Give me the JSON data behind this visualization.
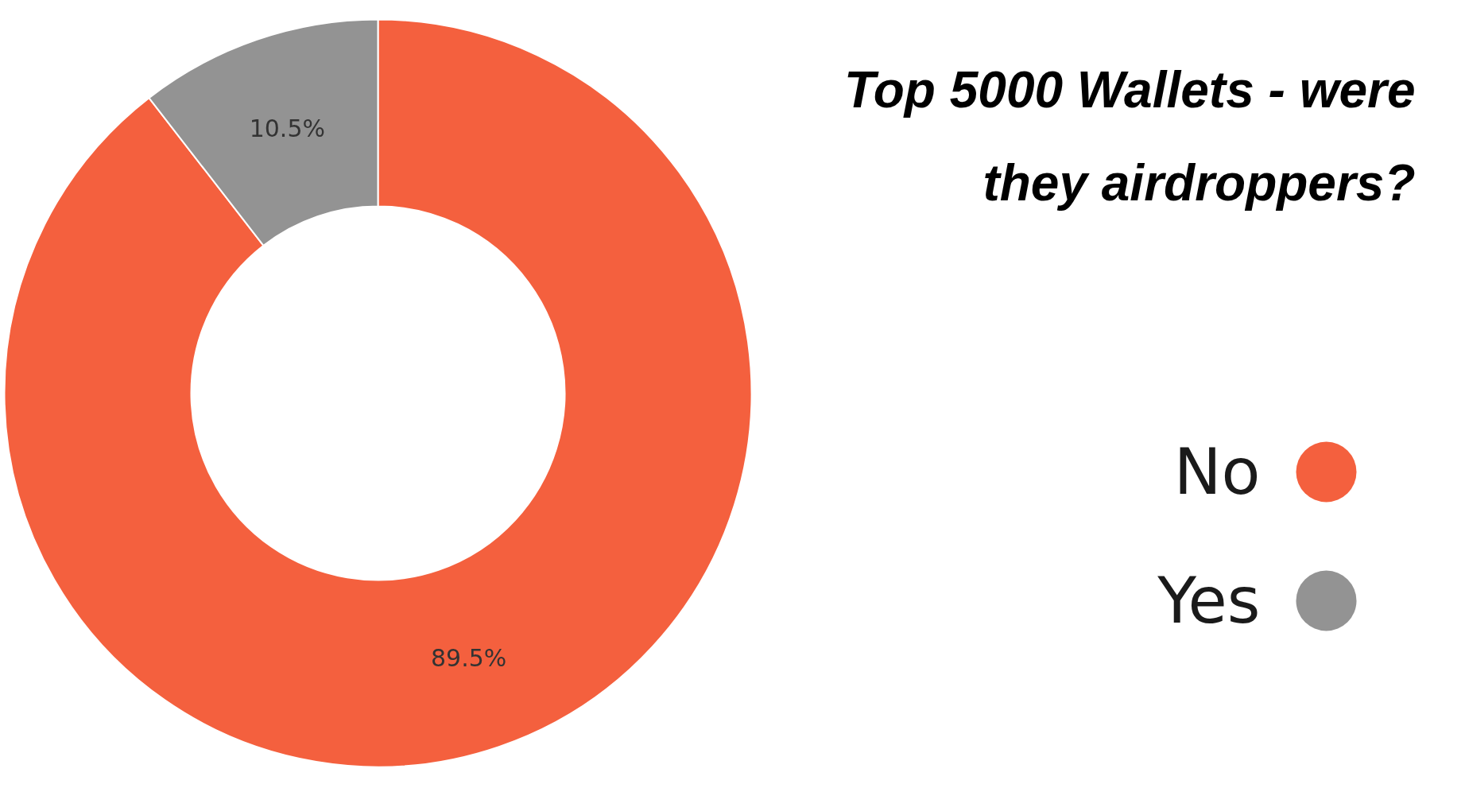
{
  "chart_data": {
    "type": "donut",
    "title": "Top 5000 Wallets - were they airdroppers?",
    "categories": [
      "No",
      "Yes"
    ],
    "values": [
      89.5,
      10.5
    ],
    "colors": [
      "#f4603e",
      "#939393"
    ],
    "value_labels": [
      "89.5%",
      "10.5%"
    ],
    "legend": "right"
  }
}
